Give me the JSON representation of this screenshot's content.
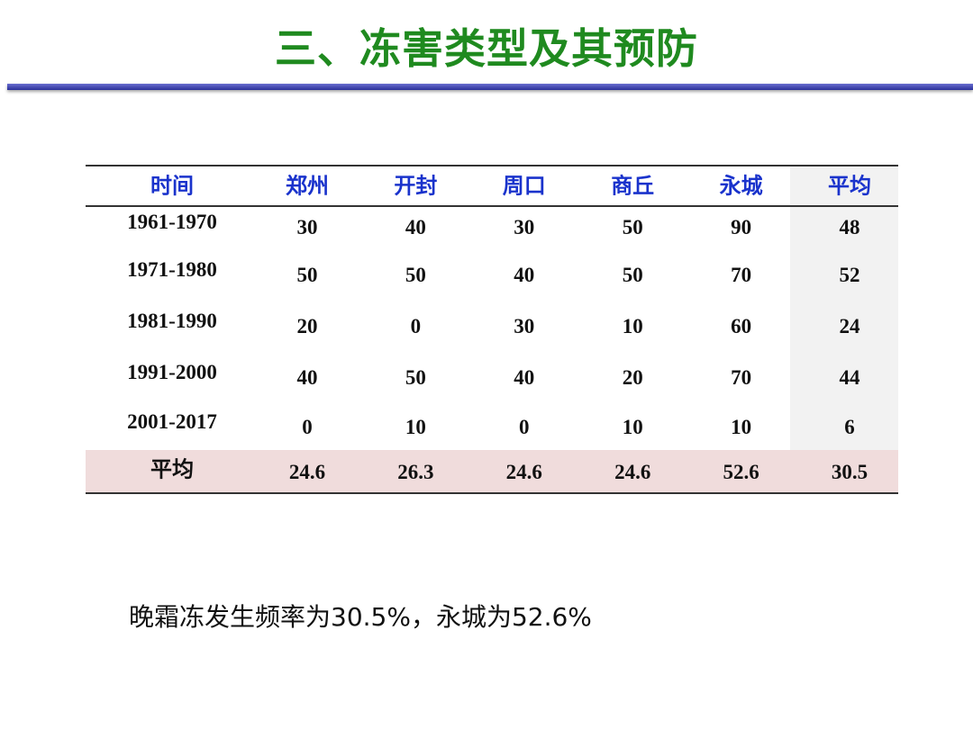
{
  "title": "三、冻害类型及其预防",
  "table": {
    "header": [
      "时间",
      "郑州",
      "开封",
      "周口",
      "商丘",
      "永城",
      "平均"
    ],
    "rows": [
      [
        "1961-1970",
        "30",
        "40",
        "30",
        "50",
        "90",
        "48"
      ],
      [
        "1971-1980",
        "50",
        "50",
        "40",
        "50",
        "70",
        "52"
      ],
      [
        "1981-1990",
        "20",
        "0",
        "30",
        "10",
        "60",
        "24"
      ],
      [
        "1991-2000",
        "40",
        "50",
        "40",
        "20",
        "70",
        "44"
      ],
      [
        "2001-2017",
        "0",
        "10",
        "0",
        "10",
        "10",
        "6"
      ]
    ],
    "footer": [
      "平均",
      "24.6",
      "26.3",
      "24.6",
      "24.6",
      "52.6",
      "30.5"
    ]
  },
  "caption": "晚霜冻发生频率为30.5%，永城为52.6%"
}
